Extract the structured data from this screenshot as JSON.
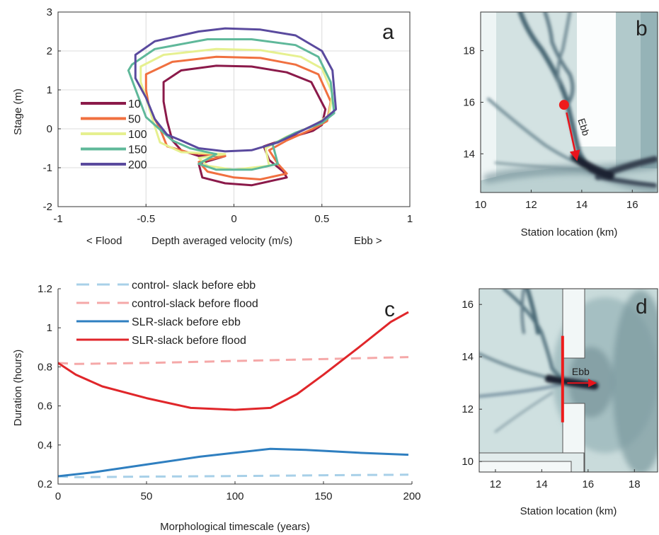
{
  "chart_data": [
    {
      "panel_label": "a",
      "type": "line",
      "ylabel": "Stage (m)",
      "xlabel": "Depth averaged velocity (m/s)",
      "xlabel_left": "< Flood",
      "xlabel_right": "Ebb >",
      "xlim": [
        -1,
        1
      ],
      "ylim": [
        -2,
        3
      ],
      "xticks": [
        "-1",
        "-0.5",
        "0",
        "0.5",
        "1"
      ],
      "yticks": [
        "-2",
        "-1",
        "0",
        "1",
        "2",
        "3"
      ],
      "grid": true,
      "legend_position": "left",
      "series": [
        {
          "name": "10",
          "color": "#8b1a4a",
          "points": [
            [
              -0.4,
              1.2
            ],
            [
              -0.3,
              1.5
            ],
            [
              -0.1,
              1.62
            ],
            [
              0.1,
              1.6
            ],
            [
              0.3,
              1.45
            ],
            [
              0.44,
              1.2
            ],
            [
              0.52,
              0.5
            ],
            [
              0.5,
              0.1
            ],
            [
              0.45,
              -0.05
            ],
            [
              0.3,
              -0.25
            ],
            [
              0.17,
              -0.45
            ],
            [
              0.2,
              -0.8
            ],
            [
              0.28,
              -1.1
            ],
            [
              0.3,
              -1.25
            ],
            [
              0.1,
              -1.45
            ],
            [
              -0.05,
              -1.4
            ],
            [
              -0.18,
              -1.25
            ],
            [
              -0.2,
              -0.9
            ],
            [
              -0.05,
              -0.7
            ],
            [
              -0.2,
              -0.7
            ],
            [
              -0.3,
              -0.55
            ],
            [
              -0.35,
              -0.3
            ],
            [
              -0.38,
              0.2
            ],
            [
              -0.4,
              0.7
            ],
            [
              -0.4,
              1.2
            ]
          ]
        },
        {
          "name": "50",
          "color": "#f07040",
          "points": [
            [
              -0.5,
              1.4
            ],
            [
              -0.35,
              1.72
            ],
            [
              -0.1,
              1.85
            ],
            [
              0.15,
              1.82
            ],
            [
              0.35,
              1.65
            ],
            [
              0.48,
              1.4
            ],
            [
              0.55,
              0.7
            ],
            [
              0.53,
              0.2
            ],
            [
              0.45,
              0
            ],
            [
              0.3,
              -0.3
            ],
            [
              0.2,
              -0.55
            ],
            [
              0.25,
              -0.9
            ],
            [
              0.3,
              -1.15
            ],
            [
              0.15,
              -1.3
            ],
            [
              0,
              -1.25
            ],
            [
              -0.15,
              -1.1
            ],
            [
              -0.2,
              -0.85
            ],
            [
              -0.05,
              -0.7
            ],
            [
              -0.25,
              -0.62
            ],
            [
              -0.38,
              -0.45
            ],
            [
              -0.42,
              0
            ],
            [
              -0.48,
              0.5
            ],
            [
              -0.5,
              1
            ]
          ]
        },
        {
          "name": "100",
          "color": "#e6f090",
          "points": [
            [
              -0.53,
              1.6
            ],
            [
              -0.4,
              1.9
            ],
            [
              -0.1,
              2.05
            ],
            [
              0.15,
              2.02
            ],
            [
              0.38,
              1.85
            ],
            [
              0.5,
              1.55
            ],
            [
              0.56,
              0.9
            ],
            [
              0.54,
              0.35
            ],
            [
              0.46,
              0.1
            ],
            [
              0.3,
              -0.2
            ],
            [
              0.18,
              -0.5
            ],
            [
              0.2,
              -0.95
            ],
            [
              0.0,
              -1.05
            ],
            [
              -0.15,
              -0.95
            ],
            [
              -0.2,
              -0.75
            ],
            [
              -0.05,
              -0.65
            ],
            [
              -0.3,
              -0.6
            ],
            [
              -0.42,
              -0.35
            ],
            [
              -0.46,
              0.2
            ],
            [
              -0.5,
              0.8
            ],
            [
              -0.53,
              1.2
            ],
            [
              -0.53,
              1.6
            ]
          ]
        },
        {
          "name": "150",
          "color": "#5fb89a",
          "points": [
            [
              -0.58,
              1.65
            ],
            [
              -0.45,
              2.05
            ],
            [
              -0.15,
              2.3
            ],
            [
              0.1,
              2.3
            ],
            [
              0.35,
              2.15
            ],
            [
              0.48,
              1.85
            ],
            [
              0.55,
              1.2
            ],
            [
              0.57,
              0.4
            ],
            [
              0.5,
              0.15
            ],
            [
              0.35,
              -0.1
            ],
            [
              0.22,
              -0.4
            ],
            [
              0.25,
              -0.9
            ],
            [
              0.1,
              -1.05
            ],
            [
              -0.1,
              -1.05
            ],
            [
              -0.2,
              -0.9
            ],
            [
              -0.1,
              -0.65
            ],
            [
              -0.25,
              -0.5
            ],
            [
              -0.35,
              -0.3
            ],
            [
              -0.5,
              0.3
            ],
            [
              -0.55,
              0.9
            ],
            [
              -0.6,
              1.5
            ]
          ]
        },
        {
          "name": "200",
          "color": "#5a4a9e",
          "points": [
            [
              -0.56,
              1.9
            ],
            [
              -0.45,
              2.25
            ],
            [
              -0.2,
              2.5
            ],
            [
              -0.05,
              2.58
            ],
            [
              0.15,
              2.55
            ],
            [
              0.35,
              2.4
            ],
            [
              0.5,
              2.0
            ],
            [
              0.56,
              1.5
            ],
            [
              0.58,
              0.5
            ],
            [
              0.5,
              0.2
            ],
            [
              0.25,
              -0.35
            ],
            [
              0.1,
              -0.55
            ],
            [
              -0.05,
              -0.58
            ],
            [
              -0.2,
              -0.5
            ],
            [
              -0.3,
              -0.3
            ],
            [
              -0.38,
              -0.15
            ],
            [
              -0.45,
              0.25
            ],
            [
              -0.5,
              0.8
            ],
            [
              -0.56,
              1.3
            ],
            [
              -0.56,
              1.9
            ]
          ]
        }
      ]
    },
    {
      "panel_label": "b",
      "type": "heatmap",
      "xlabel": "Station location (km)",
      "xlim": [
        10,
        17
      ],
      "ylim": [
        12.5,
        19.5
      ],
      "xticks": [
        "10",
        "12",
        "14",
        "16"
      ],
      "yticks": [
        "14",
        "16",
        "18"
      ],
      "station": {
        "x": 13.3,
        "y": 15.9
      },
      "arrow": {
        "from": [
          13.4,
          15.6
        ],
        "to": [
          13.8,
          13.8
        ],
        "label": "Ebb"
      }
    },
    {
      "panel_label": "c",
      "type": "line",
      "ylabel": "Duration (hours)",
      "xlabel": "Morphological timescale (years)",
      "xlim": [
        0,
        200
      ],
      "ylim": [
        0.2,
        1.2
      ],
      "xticks": [
        "0",
        "50",
        "100",
        "150",
        "200"
      ],
      "yticks": [
        "0.2",
        "0.4",
        "0.6",
        "0.8",
        "1",
        "1.2"
      ],
      "legend_position": "top-left",
      "series": [
        {
          "name": "control- slack before ebb",
          "color": "#a8d0e8",
          "style": "dashed",
          "points": [
            [
              0,
              0.24
            ],
            [
              10,
              0.235
            ],
            [
              50,
              0.238
            ],
            [
              100,
              0.241
            ],
            [
              150,
              0.245
            ],
            [
              198,
              0.248
            ]
          ]
        },
        {
          "name": "control-slack before flood",
          "color": "#f5a8a8",
          "style": "dashed",
          "points": [
            [
              0,
              0.82
            ],
            [
              10,
              0.815
            ],
            [
              50,
              0.82
            ],
            [
              100,
              0.83
            ],
            [
              150,
              0.84
            ],
            [
              198,
              0.85
            ]
          ]
        },
        {
          "name": "SLR-slack before ebb",
          "color": "#2f7fc0",
          "style": "solid",
          "points": [
            [
              0,
              0.24
            ],
            [
              20,
              0.26
            ],
            [
              50,
              0.3
            ],
            [
              80,
              0.34
            ],
            [
              100,
              0.36
            ],
            [
              120,
              0.38
            ],
            [
              140,
              0.375
            ],
            [
              170,
              0.36
            ],
            [
              198,
              0.35
            ]
          ]
        },
        {
          "name": "SLR-slack before flood",
          "color": "#e0262a",
          "style": "solid",
          "points": [
            [
              0,
              0.82
            ],
            [
              10,
              0.76
            ],
            [
              25,
              0.7
            ],
            [
              50,
              0.64
            ],
            [
              75,
              0.59
            ],
            [
              100,
              0.58
            ],
            [
              120,
              0.59
            ],
            [
              135,
              0.66
            ],
            [
              150,
              0.76
            ],
            [
              170,
              0.9
            ],
            [
              188,
              1.03
            ],
            [
              198,
              1.08
            ]
          ]
        }
      ]
    },
    {
      "panel_label": "d",
      "type": "heatmap",
      "xlabel": "Station location (km)",
      "xlim": [
        11.3,
        19
      ],
      "ylim": [
        9.6,
        16.6
      ],
      "xticks": [
        "12",
        "14",
        "16",
        "18"
      ],
      "yticks": [
        "10",
        "12",
        "14",
        "16"
      ],
      "transect": {
        "x": 14.9,
        "y_range": [
          11.5,
          14.8
        ]
      },
      "arrow": {
        "from": [
          15.1,
          13.0
        ],
        "to": [
          16.3,
          13.0
        ],
        "label": "Ebb"
      }
    }
  ]
}
